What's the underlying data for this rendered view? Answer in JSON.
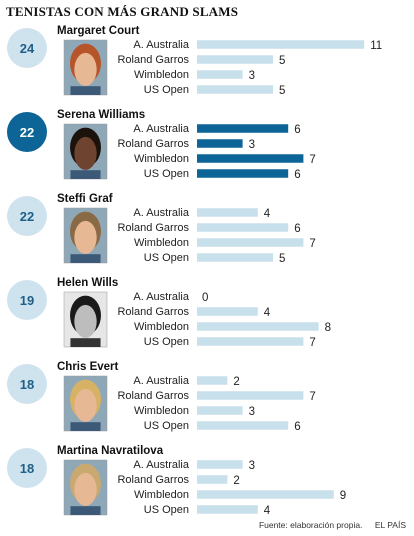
{
  "chart_data": {
    "type": "bar",
    "title": "TENISTAS CON MÁS GRAND SLAMS",
    "categories": [
      "A. Australia",
      "Roland Garros",
      "Wimbledon",
      "US Open"
    ],
    "xlim": [
      0,
      11
    ],
    "highlight_color": "#0d6496",
    "bar_color": "#c8dfec",
    "badge_color": "#cfe3ef",
    "badge_text_color": "#1f5f87",
    "players": [
      {
        "name": "Margaret Court",
        "total": 24,
        "values": [
          11,
          5,
          3,
          5
        ],
        "highlight": false,
        "photo_icon": "portrait-short-red-hair"
      },
      {
        "name": "Serena Williams",
        "total": 22,
        "values": [
          6,
          3,
          7,
          6
        ],
        "highlight": true,
        "photo_icon": "portrait-dark-curly-hair"
      },
      {
        "name": "Steffi Graf",
        "total": 22,
        "values": [
          4,
          6,
          7,
          5
        ],
        "highlight": false,
        "photo_icon": "portrait-light-brown-hair"
      },
      {
        "name": "Helen Wills",
        "total": 19,
        "values": [
          0,
          4,
          8,
          7
        ],
        "highlight": false,
        "photo_icon": "portrait-black-white"
      },
      {
        "name": "Chris Evert",
        "total": 18,
        "values": [
          2,
          7,
          3,
          6
        ],
        "highlight": false,
        "photo_icon": "portrait-blonde-hair"
      },
      {
        "name": "Martina Navratilova",
        "total": 18,
        "values": [
          3,
          2,
          9,
          4
        ],
        "highlight": false,
        "photo_icon": "portrait-short-blonde-hair"
      }
    ]
  },
  "footer": {
    "source": "Fuente: elaboración propia.",
    "credit": "EL PAÍS"
  }
}
